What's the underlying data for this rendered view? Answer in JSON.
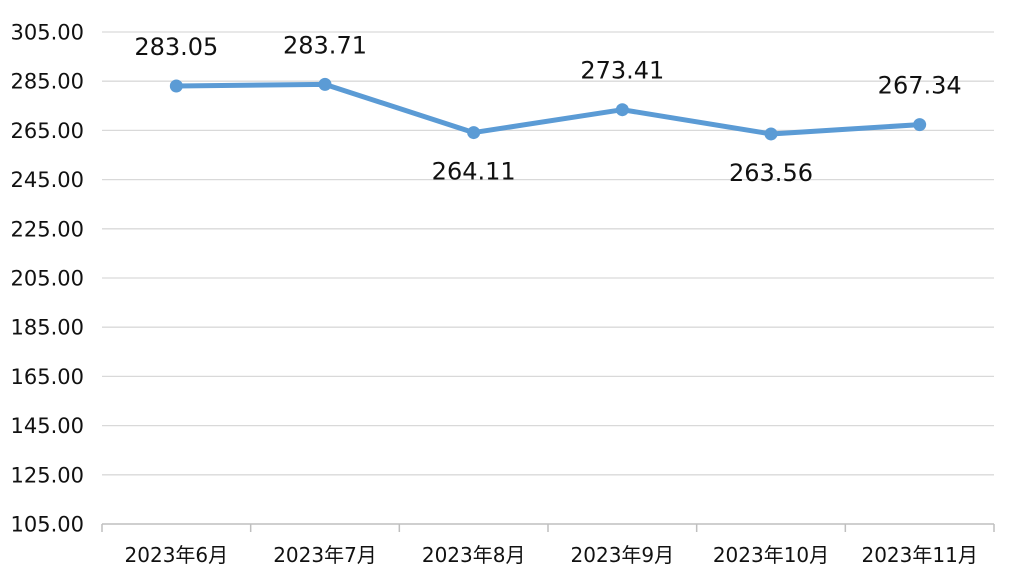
{
  "chart_data": {
    "type": "line",
    "title": "",
    "xlabel": "",
    "ylabel": "",
    "categories": [
      "2023年6月",
      "2023年7月",
      "2023年8月",
      "2023年9月",
      "2023年10月",
      "2023年11月"
    ],
    "values": [
      283.05,
      283.71,
      264.11,
      273.41,
      263.56,
      267.34
    ],
    "data_labels": [
      "283.05",
      "283.71",
      "264.11",
      "273.41",
      "263.56",
      "267.34"
    ],
    "label_positions": [
      "above",
      "above",
      "below",
      "above",
      "below",
      "above"
    ],
    "ylim": [
      105,
      305
    ],
    "y_ticks": [
      105,
      125,
      145,
      165,
      185,
      205,
      225,
      245,
      265,
      285,
      305
    ],
    "y_tick_labels": [
      "105.00",
      "125.00",
      "145.00",
      "165.00",
      "185.00",
      "205.00",
      "225.00",
      "245.00",
      "265.00",
      "285.00",
      "305.00"
    ],
    "grid": true,
    "legend": "none",
    "line_color": "#5B9BD5",
    "grid_color": "#D9D9D9",
    "axis_color": "#BFBFBF"
  }
}
